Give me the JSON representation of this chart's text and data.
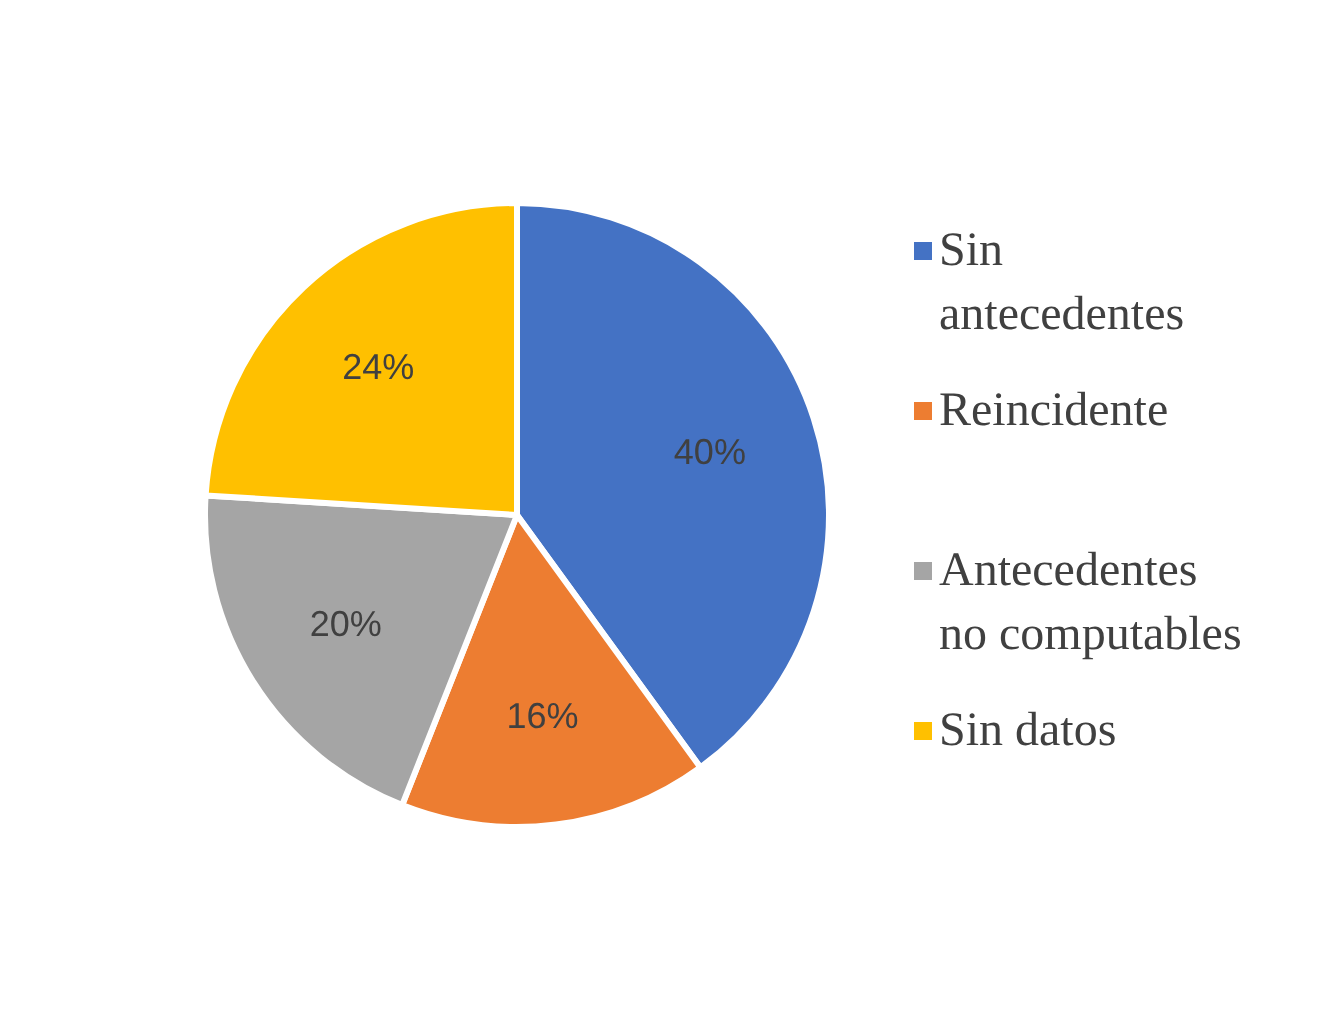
{
  "chart_data": {
    "type": "pie",
    "categories": [
      "Sin antecedentes",
      "Reincidente",
      "Antecedentes no computables",
      "Sin datos"
    ],
    "values": [
      40,
      16,
      20,
      24
    ],
    "colors": [
      "#4472c4",
      "#ed7d31",
      "#a5a5a5",
      "#ffc000"
    ],
    "value_labels": [
      "40%",
      "16%",
      "20%",
      "24%"
    ],
    "legend": "right"
  }
}
